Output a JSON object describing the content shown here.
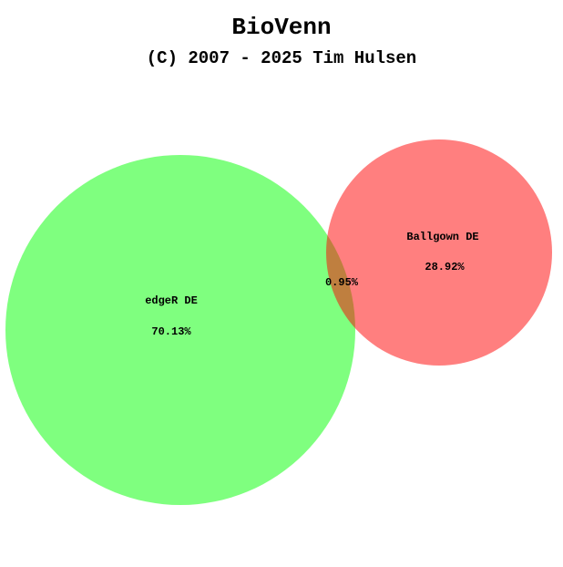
{
  "header": {
    "title": "BioVenn",
    "subtitle": "(C) 2007 - 2025 Tim Hulsen"
  },
  "venn": {
    "sets": [
      {
        "id": "set-a",
        "name": "edgeR DE",
        "unique_percent": "70.13%",
        "color": "#00ff00"
      },
      {
        "id": "set-b",
        "name": "Ballgown DE",
        "unique_percent": "28.92%",
        "color": "#ff0000"
      }
    ],
    "overlap_percent": "0.95%"
  }
}
